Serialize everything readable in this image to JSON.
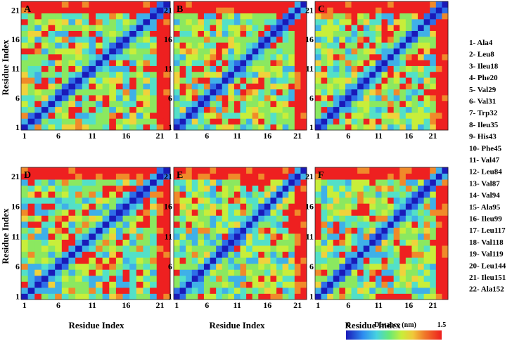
{
  "chart_data": {
    "type": "heatmap",
    "panels": [
      "A",
      "B",
      "C",
      "D",
      "E",
      "F"
    ],
    "matrix_size": 22,
    "tick_labels": [
      "1",
      "6",
      "11",
      "16",
      "21"
    ],
    "tick_values": [
      1,
      6,
      11,
      16,
      21
    ],
    "xlabel": "Residue Index",
    "ylabel": "Residue Index",
    "colorbar": {
      "label": "Distance (nm)",
      "min_label": "0",
      "max_label": "1.5",
      "range": [
        0,
        1.5
      ]
    },
    "colors": [
      "#1a1ab8",
      "#2e6ee8",
      "#3fb0e8",
      "#53e0c8",
      "#8be860",
      "#c8ee3a",
      "#f0d23c",
      "#f08a2a",
      "#ee2020"
    ],
    "residues": [
      "1- Ala4",
      "2- Leu8",
      "3- Ileu18",
      "4- Phe20",
      "5- Val29",
      "6- Val31",
      "7- Trp32",
      "8- Ileu35",
      "9- His43",
      "10- Phe45",
      "11- Val47",
      "12- Leu84",
      "13- Val87",
      "14- Val94",
      "15- Ala95",
      "16- Ileu99",
      "17- Leu117",
      "18- Val118",
      "19- Val119",
      "20- Leu144",
      "21- Ileu151",
      "22- Ala152"
    ]
  }
}
